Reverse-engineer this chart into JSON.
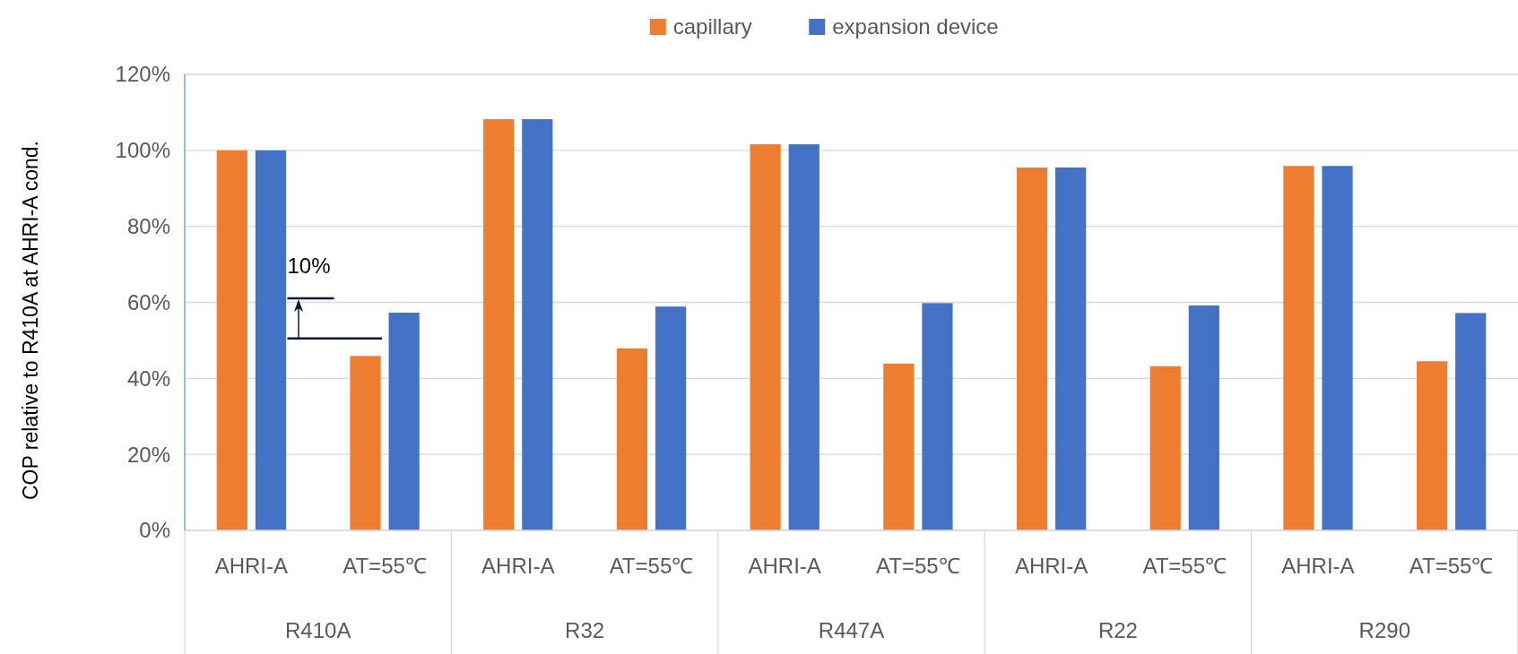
{
  "chart_data": {
    "type": "bar",
    "ylabel": "COP relative to R410A at AHRI-A cond.",
    "categories": [
      "AHRI-A",
      "AT=55℃",
      "AHRI-A",
      "AT=55℃",
      "AHRI-A",
      "AT=55℃",
      "AHRI-A",
      "AT=55℃",
      "AHRI-A",
      "AT=55℃"
    ],
    "series": [
      {
        "name": "capillary",
        "color": "#ed7d31",
        "values": [
          100,
          45.9,
          108.2,
          47.9,
          101.6,
          43.9,
          95.5,
          43.2,
          95.9,
          44.5
        ]
      },
      {
        "name": "expansion device",
        "color": "#4472c4",
        "values": [
          100,
          57.3,
          108.2,
          58.9,
          101.6,
          59.8,
          95.5,
          59.2,
          95.9,
          57.2
        ]
      }
    ],
    "ylim": [
      0,
      120
    ],
    "yticks": [
      {
        "value": 0,
        "label": "0%"
      },
      {
        "value": 20,
        "label": "20%"
      },
      {
        "value": 40,
        "label": "40%"
      },
      {
        "value": 60,
        "label": "60%"
      },
      {
        "value": 80,
        "label": "80%"
      },
      {
        "value": 100,
        "label": "100%"
      },
      {
        "value": 120,
        "label": "120%"
      }
    ],
    "grid": "y",
    "legend": "top",
    "annotations": [
      "10%",
      "R410A",
      "R32",
      "R447A",
      "R22",
      "R290"
    ]
  }
}
